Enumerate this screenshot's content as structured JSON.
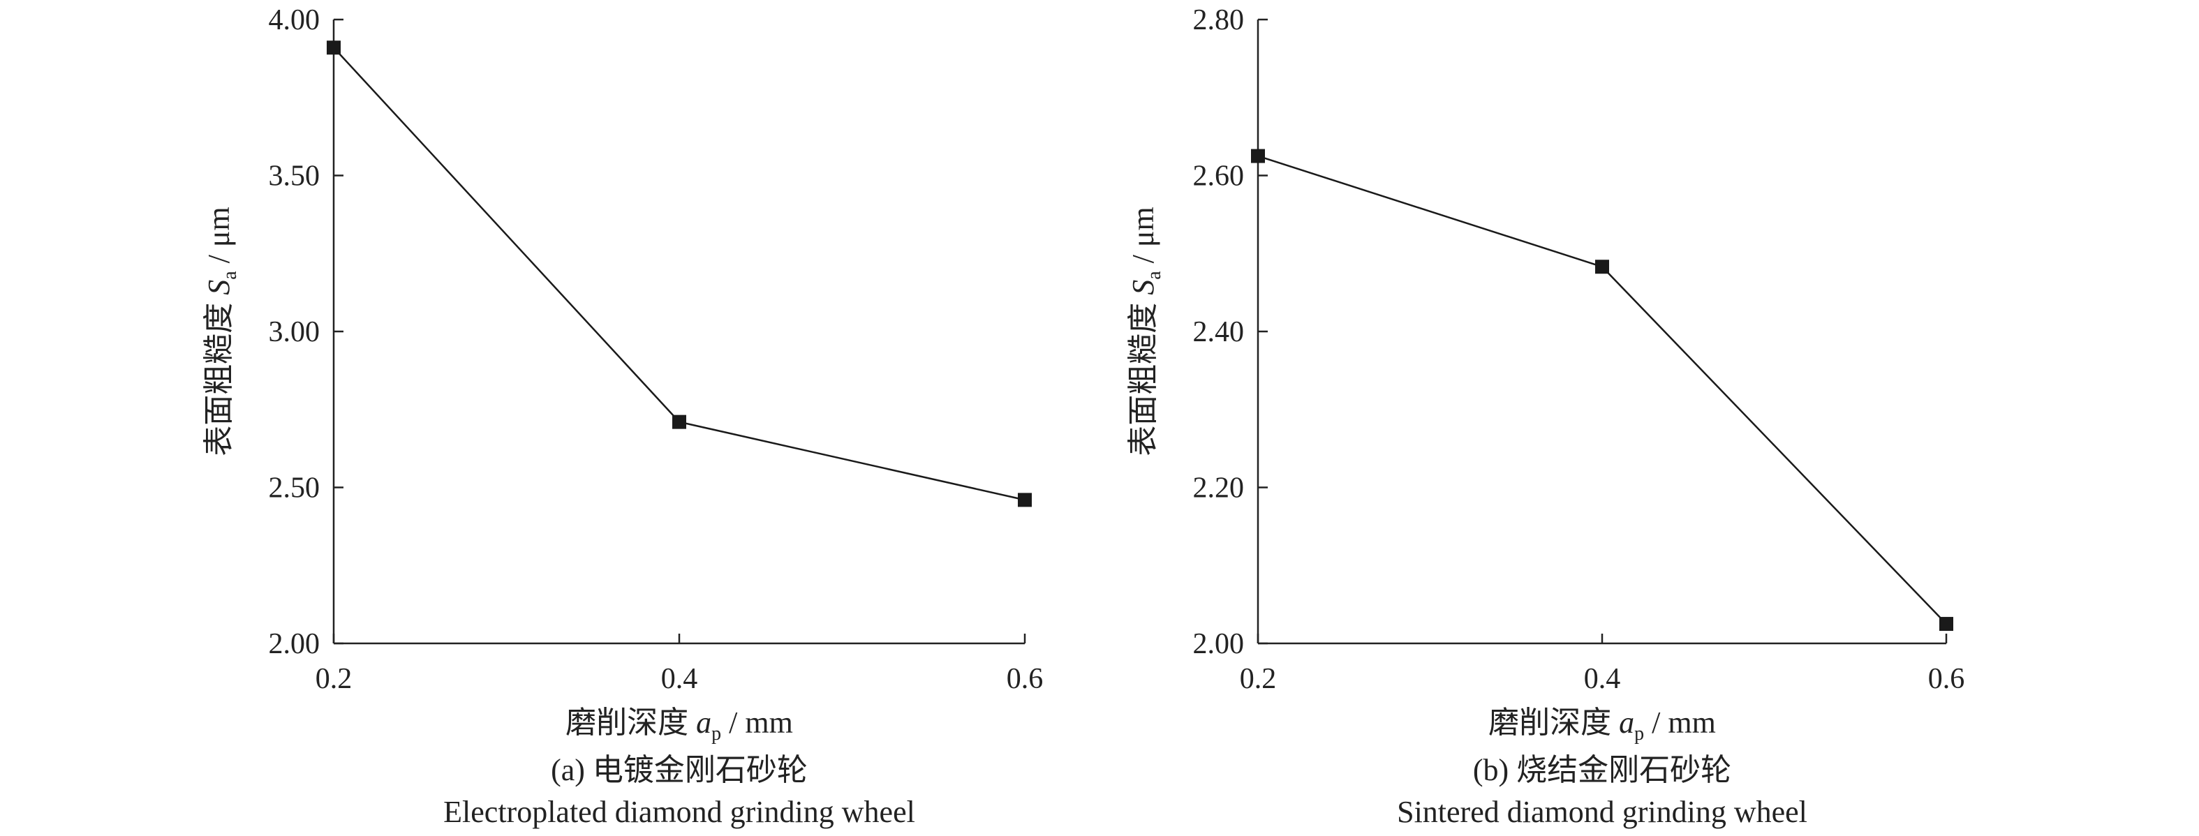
{
  "chart_data": [
    {
      "type": "line",
      "x": [
        0.2,
        0.4,
        0.6
      ],
      "series": [
        {
          "values": [
            3.91,
            2.71,
            2.46
          ]
        }
      ],
      "xlabel": {
        "text": "磨削深度 ",
        "var": "a",
        "sub": "p",
        "unit": " / mm"
      },
      "ylabel": {
        "text": "表面粗糙度 ",
        "var": "S",
        "sub": "a",
        "unit": " / μm"
      },
      "xlim": [
        0.2,
        0.6
      ],
      "ylim": [
        2.0,
        4.0
      ],
      "xticks": [
        "0.2",
        "0.4",
        "0.6"
      ],
      "yticks": [
        "2.00",
        "2.50",
        "3.00",
        "3.50",
        "4.00"
      ],
      "caption_cn": "(a) 电镀金刚石砂轮",
      "caption_en": "Electroplated diamond grinding wheel",
      "marker": "square",
      "color": "#1a1a1a",
      "grid": false
    },
    {
      "type": "line",
      "x": [
        0.2,
        0.4,
        0.6
      ],
      "series": [
        {
          "values": [
            2.625,
            2.483,
            2.025
          ]
        }
      ],
      "xlabel": {
        "text": "磨削深度 ",
        "var": "a",
        "sub": "p",
        "unit": " / mm"
      },
      "ylabel": {
        "text": "表面粗糙度 ",
        "var": "S",
        "sub": "a",
        "unit": " / μm"
      },
      "xlim": [
        0.2,
        0.6
      ],
      "ylim": [
        2.0,
        2.8
      ],
      "xticks": [
        "0.2",
        "0.4",
        "0.6"
      ],
      "yticks": [
        "2.00",
        "2.20",
        "2.40",
        "2.60",
        "2.80"
      ],
      "caption_cn": "(b) 烧结金刚石砂轮",
      "caption_en": "Sintered diamond grinding wheel",
      "marker": "square",
      "color": "#1a1a1a",
      "grid": false
    }
  ]
}
